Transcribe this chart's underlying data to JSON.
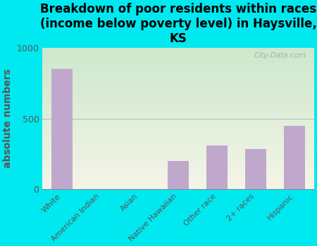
{
  "title": "Breakdown of poor residents within races\n(income below poverty level) in Haysville,\nKS",
  "categories": [
    "White",
    "American Indian",
    "Asian",
    "Native Hawaiian",
    "Other race",
    "2+ races",
    "Hispanic"
  ],
  "values": [
    850,
    0,
    0,
    200,
    310,
    285,
    450
  ],
  "bar_color": "#c0a8cc",
  "ylabel": "absolute numbers",
  "ylim": [
    0,
    1000
  ],
  "yticks": [
    0,
    500,
    1000
  ],
  "background_color": "#00e8f0",
  "plot_bg_topleft": "#cce8cc",
  "plot_bg_bottomright": "#f5f5e8",
  "title_fontsize": 12,
  "ylabel_fontsize": 10,
  "tick_label_color": "#555555",
  "watermark": "City-Data.com"
}
